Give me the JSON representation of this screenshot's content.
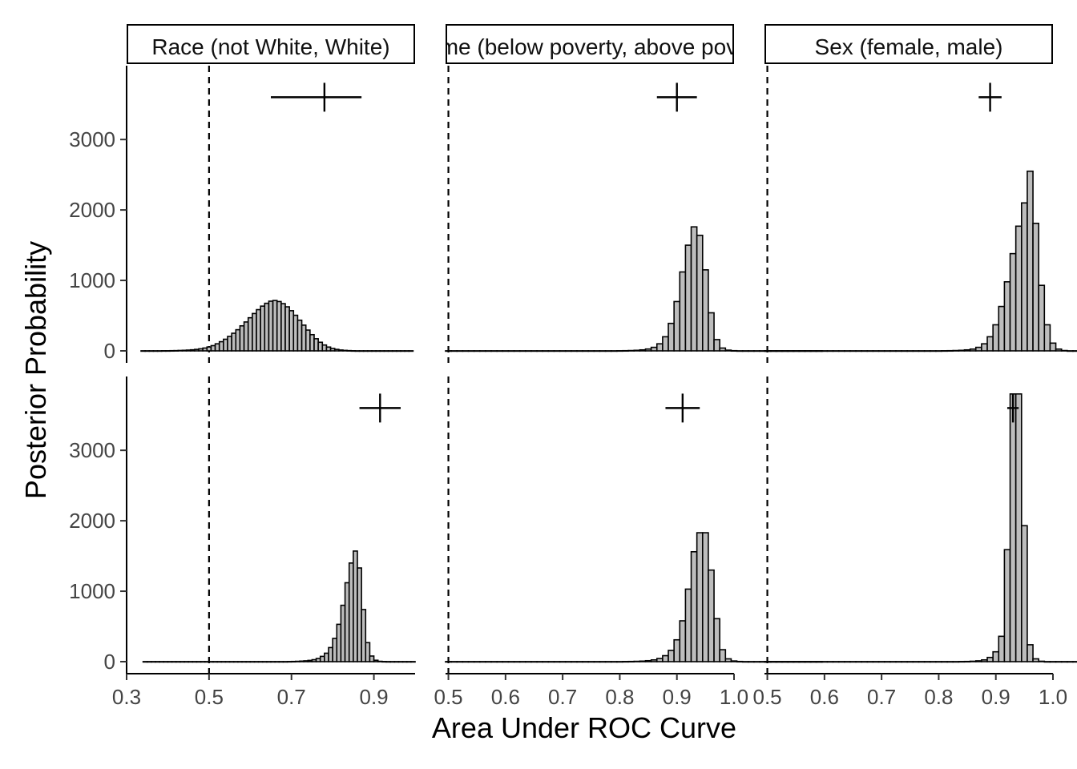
{
  "chart_data": {
    "type": "bar",
    "title": "",
    "xlabel": "Area Under ROC Curve",
    "ylabel": "Posterior Probability",
    "ylim": [
      0,
      3900
    ],
    "y_ticks": [
      "0",
      "1000",
      "2000",
      "3000"
    ],
    "grid": false,
    "reference_line_x": 0.5,
    "panels": [
      {
        "strip": "Race (not White, White)",
        "xlim": [
          0.3,
          1.0
        ],
        "x_ticks": [
          "0.3",
          "0.5",
          "0.7",
          "0.9"
        ],
        "rows": [
          {
            "hist": {
              "x0": 0.335,
              "bin_width": 0.01,
              "values": [
                1,
                1,
                1,
                1,
                1,
                2,
                2,
                3,
                4,
                6,
                8,
                11,
                15,
                21,
                29,
                40,
                55,
                74,
                100,
                130,
                165,
                205,
                250,
                300,
                355,
                410,
                470,
                530,
                585,
                635,
                675,
                705,
                715,
                700,
                670,
                625,
                570,
                505,
                435,
                365,
                295,
                230,
                172,
                122,
                83,
                54,
                34,
                21,
                12,
                7,
                4,
                2,
                1,
                1,
                1,
                1,
                1,
                1,
                1,
                1,
                1,
                1,
                1,
                1,
                1,
                1
              ]
            },
            "estimate": {
              "x": 0.78,
              "y": 3600,
              "xmin": 0.65,
              "xmax": 0.87
            }
          },
          {
            "hist": {
              "x0": 0.34,
              "bin_width": 0.01,
              "values": [
                1,
                1,
                1,
                1,
                1,
                1,
                1,
                1,
                1,
                1,
                1,
                1,
                1,
                1,
                1,
                1,
                1,
                1,
                1,
                1,
                1,
                1,
                1,
                1,
                1,
                1,
                1,
                1,
                1,
                1,
                1,
                1,
                1,
                1,
                1,
                2,
                3,
                5,
                8,
                12,
                18,
                28,
                45,
                75,
                120,
                200,
                330,
                530,
                800,
                1120,
                1400,
                1570,
                1330,
                740,
                270,
                80,
                20,
                5,
                2,
                1,
                1,
                1,
                1,
                1,
                1,
                1
              ]
            },
            "estimate": {
              "x": 0.915,
              "y": 3600,
              "xmin": 0.865,
              "xmax": 0.965
            }
          }
        ]
      },
      {
        "strip": "Income (below poverty, above poverty)",
        "xlim": [
          0.495,
          1.0
        ],
        "x_ticks": [
          "0.5",
          "0.6",
          "0.7",
          "0.8",
          "0.9",
          "1.0"
        ],
        "rows": [
          {
            "hist": {
              "x0": 0.495,
              "bin_width": 0.01,
              "values": [
                1,
                1,
                1,
                1,
                1,
                1,
                1,
                1,
                1,
                1,
                1,
                1,
                1,
                1,
                1,
                1,
                1,
                1,
                1,
                1,
                1,
                1,
                1,
                1,
                1,
                1,
                1,
                1,
                1,
                1,
                2,
                3,
                5,
                8,
                14,
                26,
                50,
                100,
                200,
                390,
                700,
                1120,
                1500,
                1760,
                1640,
                1150,
                540,
                160,
                40,
                10,
                3,
                1,
                1,
                1,
                1,
                1,
                1,
                1,
                1,
                1,
                1,
                1,
                1,
                1,
                1,
                1
              ]
            },
            "estimate": {
              "x": 0.9,
              "y": 3600,
              "xmin": 0.865,
              "xmax": 0.935
            }
          },
          {
            "hist": {
              "x0": 0.495,
              "bin_width": 0.01,
              "values": [
                1,
                1,
                1,
                1,
                1,
                1,
                1,
                1,
                1,
                1,
                1,
                1,
                1,
                1,
                1,
                1,
                1,
                1,
                1,
                1,
                1,
                1,
                1,
                1,
                1,
                1,
                1,
                1,
                1,
                1,
                1,
                2,
                3,
                5,
                8,
                14,
                25,
                45,
                85,
                160,
                310,
                580,
                1030,
                1560,
                1830,
                1830,
                1300,
                610,
                170,
                40,
                10,
                3,
                1,
                1,
                1,
                1,
                1,
                1,
                1,
                1,
                1,
                1,
                1,
                1,
                1,
                1
              ]
            },
            "estimate": {
              "x": 0.91,
              "y": 3600,
              "xmin": 0.88,
              "xmax": 0.94
            }
          }
        ]
      },
      {
        "strip": "Sex (female, male)",
        "xlim": [
          0.495,
          1.0
        ],
        "x_ticks": [
          "0.5",
          "0.6",
          "0.7",
          "0.8",
          "0.9",
          "1.0"
        ],
        "rows": [
          {
            "hist": {
              "x0": 0.495,
              "bin_width": 0.01,
              "values": [
                1,
                1,
                1,
                1,
                1,
                1,
                1,
                1,
                1,
                1,
                1,
                1,
                1,
                1,
                1,
                1,
                1,
                1,
                1,
                1,
                1,
                1,
                1,
                1,
                1,
                1,
                1,
                1,
                1,
                1,
                1,
                2,
                3,
                5,
                8,
                14,
                25,
                50,
                100,
                200,
                370,
                630,
                980,
                1380,
                1770,
                2100,
                2550,
                1810,
                930,
                370,
                110,
                25,
                5,
                1,
                1,
                1,
                1,
                1,
                1,
                1,
                1,
                1,
                1,
                1,
                1,
                1
              ]
            },
            "estimate": {
              "x": 0.89,
              "y": 3600,
              "xmin": 0.87,
              "xmax": 0.91
            }
          },
          {
            "hist": {
              "x0": 0.495,
              "bin_width": 0.01,
              "values": [
                1,
                1,
                1,
                1,
                1,
                1,
                1,
                1,
                1,
                1,
                1,
                1,
                1,
                1,
                1,
                1,
                1,
                1,
                1,
                1,
                1,
                1,
                1,
                1,
                1,
                1,
                1,
                1,
                1,
                1,
                1,
                1,
                1,
                1,
                2,
                3,
                6,
                12,
                25,
                60,
                140,
                360,
                1590,
                3800,
                3800,
                1930,
                240,
                40,
                6,
                1,
                1,
                1,
                1,
                1,
                1,
                1,
                1,
                1,
                1,
                1,
                1,
                1,
                1,
                1,
                1,
                1
              ]
            },
            "estimate": {
              "x": 0.93,
              "y": 3600,
              "xmin": 0.92,
              "xmax": 0.94
            }
          }
        ]
      }
    ]
  }
}
